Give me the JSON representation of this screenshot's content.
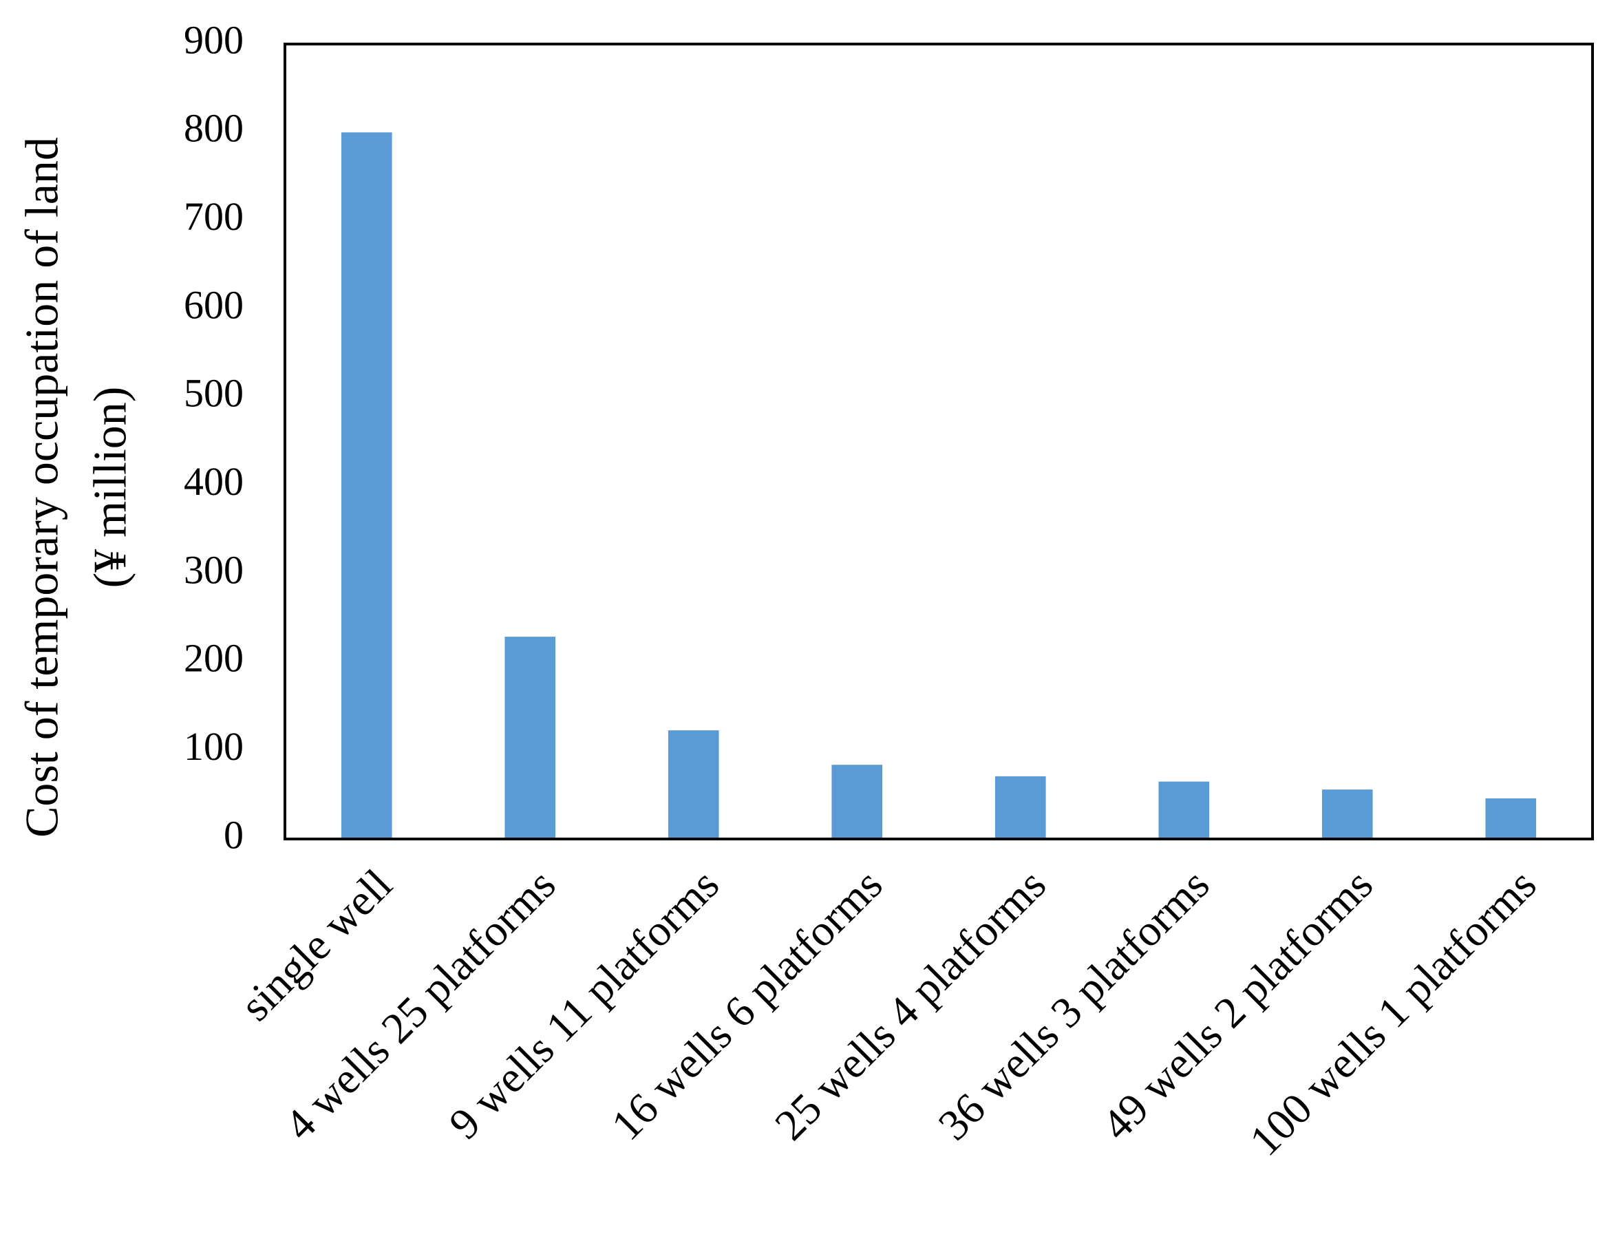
{
  "chart_data": {
    "type": "bar",
    "ylabel": [
      "Cost of temporary occupation of land",
      "(¥ million)"
    ],
    "categories": [
      "single well",
      "4 wells 25 platforms",
      "9 wells 11 platforms",
      "16 wells 6 platforms",
      "25 wells 4 platforms",
      "36 wells 3 platforms",
      "49 wells 2 platforms",
      "100 wells 1 platforms"
    ],
    "values": [
      800,
      229,
      123,
      84,
      71,
      65,
      56,
      46
    ],
    "color": "#5b9bd5",
    "ylim": [
      0,
      900
    ],
    "yticks": [
      0,
      100,
      200,
      300,
      400,
      500,
      600,
      700,
      800,
      900
    ],
    "grid": false
  }
}
